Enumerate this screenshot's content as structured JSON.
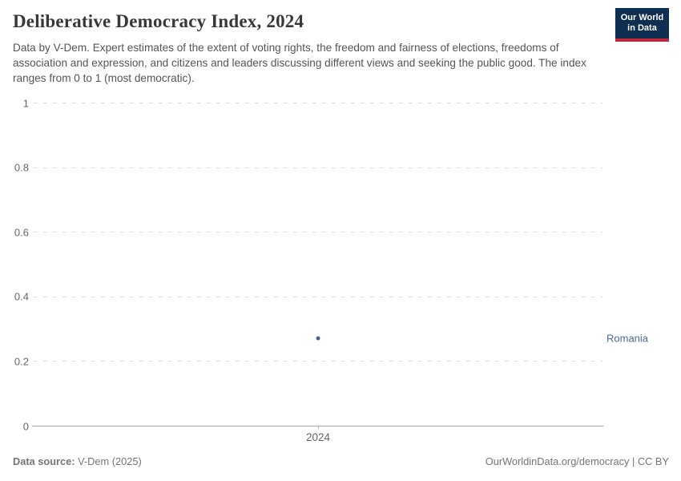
{
  "header": {
    "title": "Deliberative Democracy Index, 2024",
    "subtitle": "Data by V-Dem. Expert estimates of the extent of voting rights, the freedom and fairness of elections, freedoms of association and expression, and citizens and leaders discussing different views and seeking the public good. The index ranges from 0 to 1 (most democratic).",
    "logo": {
      "line1": "Our World",
      "line2": "in Data",
      "bg_color": "#0e2e52",
      "accent_color": "#c0273a"
    }
  },
  "chart_data": {
    "type": "scatter",
    "title": "Deliberative Democracy Index, 2024",
    "x": [
      2024
    ],
    "series": [
      {
        "name": "Romania",
        "values": [
          0.27
        ],
        "color": "#4a5f94",
        "label_color": "#4C6A9C"
      }
    ],
    "xlabel": "",
    "ylabel": "",
    "ylim": [
      0,
      1
    ],
    "yticks": [
      1,
      0.8,
      0.6,
      0.4,
      0.2,
      0
    ],
    "ytick_labels": [
      "1",
      "0.8",
      "0.6",
      "0.4",
      "0.2",
      "0"
    ],
    "xtick_labels": [
      "2024"
    ],
    "grid": "horizontal dashed, zero line solid",
    "legend": "entity name at right of plot"
  },
  "footer": {
    "source_label": "Data source:",
    "source_value": " V-Dem (2025)",
    "right_text": "OurWorldinData.org/democracy | CC BY"
  }
}
